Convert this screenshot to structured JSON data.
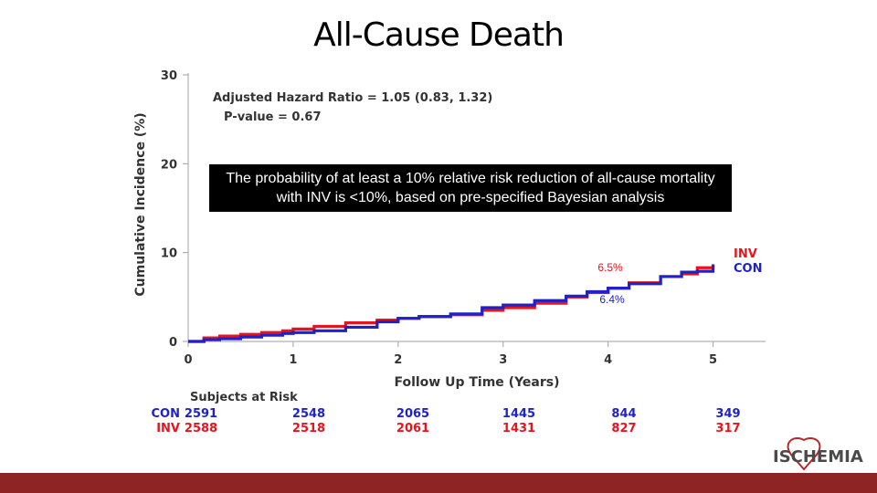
{
  "slide": {
    "title": "All-Cause Death",
    "callout": "The probability of at least a 10% relative risk reduction of all-cause mortality with INV is <10%, based on pre-specified Bayesian analysis",
    "logo_text": "ISCHEMIA",
    "colors": {
      "accent_bar": "#8e2424",
      "inv": "#e8141b",
      "con": "#1f22c8",
      "callout_bg": "#000000"
    }
  },
  "chart_data": {
    "type": "line",
    "ylabel": "Cumulative Incidence (%)",
    "xlabel": "Follow Up Time (Years)",
    "xlim": [
      0,
      5.5
    ],
    "ylim": [
      0,
      30
    ],
    "x_ticks": [
      0,
      1,
      2,
      3,
      4,
      5
    ],
    "y_ticks": [
      0,
      10,
      20,
      30
    ],
    "annotations": {
      "hazard_ratio": "Adjusted Hazard Ratio = 1.05 (0.83, 1.32)",
      "p_value": "P-value = 0.67",
      "inv_end_label": "6.5%",
      "con_end_label": "6.4%"
    },
    "legend_position": "right-end",
    "series": [
      {
        "name": "INV",
        "color": "#e8141b",
        "x": [
          0,
          0.15,
          0.3,
          0.5,
          0.7,
          0.9,
          1.0,
          1.2,
          1.5,
          1.8,
          2.0,
          2.2,
          2.5,
          2.8,
          3.0,
          3.3,
          3.6,
          3.8,
          4.0,
          4.2,
          4.5,
          4.7,
          4.85,
          5.0
        ],
        "values": [
          0,
          0.4,
          0.6,
          0.8,
          1.0,
          1.2,
          1.4,
          1.7,
          2.1,
          2.4,
          2.6,
          2.8,
          3.0,
          3.5,
          3.8,
          4.3,
          5.0,
          5.5,
          6.0,
          6.6,
          7.3,
          7.6,
          8.3,
          8.7
        ]
      },
      {
        "name": "CON",
        "color": "#1f22c8",
        "x": [
          0,
          0.15,
          0.3,
          0.5,
          0.7,
          0.9,
          1.0,
          1.2,
          1.5,
          1.8,
          2.0,
          2.2,
          2.5,
          2.8,
          3.0,
          3.3,
          3.6,
          3.8,
          4.0,
          4.2,
          4.5,
          4.7,
          4.85,
          5.0
        ],
        "values": [
          0,
          0.2,
          0.3,
          0.5,
          0.7,
          0.9,
          1.0,
          1.2,
          1.6,
          2.2,
          2.6,
          2.8,
          3.1,
          3.8,
          4.1,
          4.6,
          5.1,
          5.6,
          6.0,
          6.5,
          7.3,
          7.8,
          7.9,
          8.6
        ]
      }
    ],
    "risk_table": {
      "title": "Subjects at Risk",
      "rows": [
        {
          "label": "CON",
          "color": "#1f22c8",
          "values": [
            "2591",
            "2548",
            "2065",
            "1445",
            "844",
            "349"
          ]
        },
        {
          "label": "INV",
          "color": "#e8141b",
          "values": [
            "2588",
            "2518",
            "2061",
            "1431",
            "827",
            "317"
          ]
        }
      ]
    }
  }
}
